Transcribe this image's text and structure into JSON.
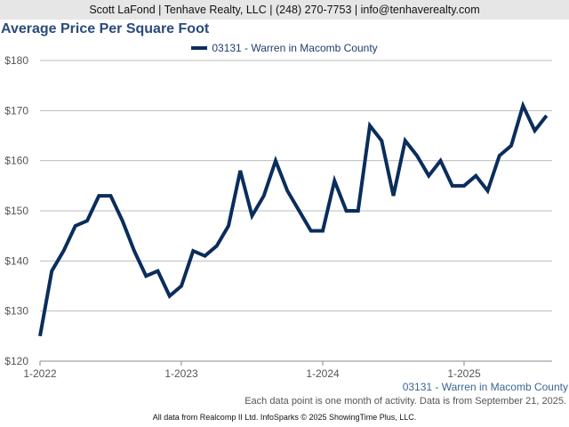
{
  "header": {
    "contact": "Scott LaFond | Tenhave Realty, LLC | (248) 270-7753 | info@tenhaverealty.com"
  },
  "chart_data": {
    "type": "line",
    "title": "Average Price Per Square Foot",
    "series": [
      {
        "name": "03131 - Warren in Macomb County",
        "color": "#0a2d5c",
        "values": [
          125,
          138,
          142,
          147,
          148,
          153,
          153,
          148,
          142,
          137,
          138,
          133,
          135,
          142,
          141,
          143,
          147,
          158,
          149,
          153,
          160,
          154,
          150,
          146,
          146,
          156,
          150,
          150,
          167,
          164,
          153,
          164,
          161,
          157,
          160,
          155,
          155,
          157,
          154,
          161,
          163,
          171,
          166,
          169
        ]
      }
    ],
    "x_ticks": [
      "1-2022",
      "1-2023",
      "1-2024",
      "1-2025"
    ],
    "y_ticks": [
      "$120",
      "$130",
      "$140",
      "$150",
      "$160",
      "$170",
      "$180"
    ],
    "ylim": [
      120,
      180
    ],
    "grid": true
  },
  "footer": {
    "series_label": "03131 - Warren in Macomb County",
    "note": "Each data point is one month of activity. Data is from September 21, 2025.",
    "credit": "All data from Realcomp II Ltd. InfoSparks © 2025 ShowingTime Plus, LLC."
  }
}
